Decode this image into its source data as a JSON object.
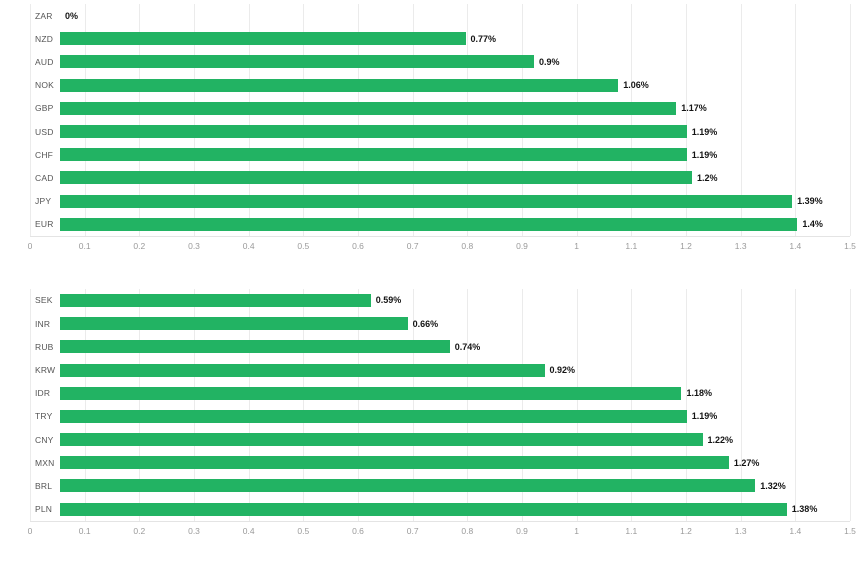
{
  "bar_color": "#22b363",
  "grid_color": "#ebebeb",
  "chart_data": [
    {
      "type": "bar",
      "orientation": "horizontal",
      "title": "",
      "categories": [
        "ZAR",
        "NZD",
        "AUD",
        "NOK",
        "GBP",
        "USD",
        "CHF",
        "CAD",
        "JPY",
        "EUR"
      ],
      "values": [
        0,
        0.77,
        0.9,
        1.06,
        1.17,
        1.19,
        1.19,
        1.2,
        1.39,
        1.4
      ],
      "value_labels": [
        "0%",
        "0.77%",
        "0.9%",
        "1.06%",
        "1.17%",
        "1.19%",
        "1.19%",
        "1.2%",
        "1.39%",
        "1.4%"
      ],
      "xlim": [
        0,
        1.5
      ],
      "xticks": [
        0,
        0.1,
        0.2,
        0.3,
        0.4,
        0.5,
        0.6,
        0.7,
        0.8,
        0.9,
        1,
        1.1,
        1.2,
        1.3,
        1.4,
        1.5
      ],
      "xtick_labels": [
        "0",
        "0.1",
        "0.2",
        "0.3",
        "0.4",
        "0.5",
        "0.6",
        "0.7",
        "0.8",
        "0.9",
        "1",
        "1.1",
        "1.2",
        "1.3",
        "1.4",
        "1.5"
      ],
      "grid": true,
      "legend": false,
      "bar_color": "#22b363"
    },
    {
      "type": "bar",
      "orientation": "horizontal",
      "title": "",
      "categories": [
        "SEK",
        "INR",
        "RUB",
        "KRW",
        "IDR",
        "TRY",
        "CNY",
        "MXN",
        "BRL",
        "PLN"
      ],
      "values": [
        0.59,
        0.66,
        0.74,
        0.92,
        1.18,
        1.19,
        1.22,
        1.27,
        1.32,
        1.38
      ],
      "value_labels": [
        "0.59%",
        "0.66%",
        "0.74%",
        "0.92%",
        "1.18%",
        "1.19%",
        "1.22%",
        "1.27%",
        "1.32%",
        "1.38%"
      ],
      "xlim": [
        0,
        1.5
      ],
      "xticks": [
        0,
        0.1,
        0.2,
        0.3,
        0.4,
        0.5,
        0.6,
        0.7,
        0.8,
        0.9,
        1,
        1.1,
        1.2,
        1.3,
        1.4,
        1.5
      ],
      "xtick_labels": [
        "0",
        "0.1",
        "0.2",
        "0.3",
        "0.4",
        "0.5",
        "0.6",
        "0.7",
        "0.8",
        "0.9",
        "1",
        "1.1",
        "1.2",
        "1.3",
        "1.4",
        "1.5"
      ],
      "grid": true,
      "legend": false,
      "bar_color": "#22b363"
    }
  ]
}
